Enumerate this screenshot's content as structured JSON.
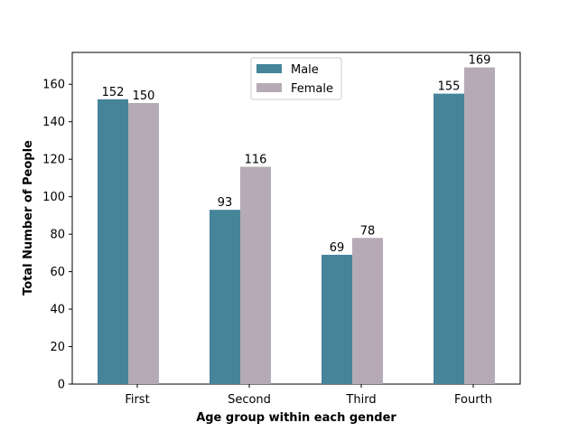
{
  "chart_data": {
    "type": "bar",
    "categories": [
      "First",
      "Second",
      "Third",
      "Fourth"
    ],
    "series": [
      {
        "name": "Male",
        "values": [
          152,
          93,
          69,
          155
        ],
        "color": "#468499"
      },
      {
        "name": "Female",
        "values": [
          150,
          116,
          78,
          169
        ],
        "color": "#b6abb5"
      }
    ],
    "xlabel": "Age group within each gender",
    "ylabel": "Total Number of People",
    "ylim": [
      0,
      177
    ],
    "yticks": [
      0,
      20,
      40,
      60,
      80,
      100,
      120,
      140,
      160
    ],
    "legend_position": "top-center",
    "grid": false
  }
}
